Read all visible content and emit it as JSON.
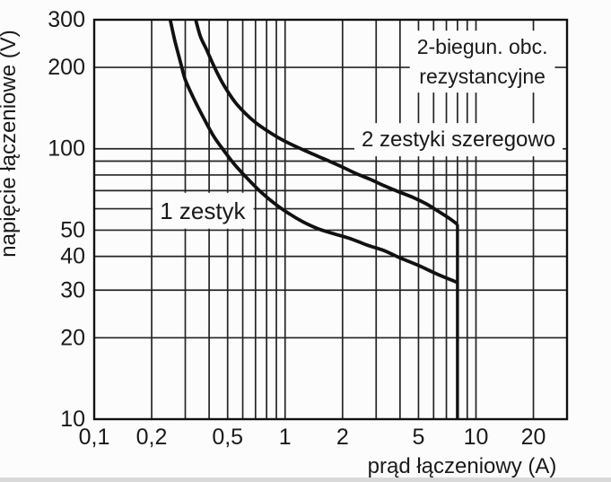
{
  "chart_data": {
    "type": "line",
    "title": "",
    "x_axis": {
      "label": "prąd łączeniowy (A)",
      "scale": "log",
      "min": 0.1,
      "max": 30,
      "ticks": [
        0.1,
        0.2,
        0.5,
        1,
        2,
        5,
        10,
        20
      ],
      "tick_labels": [
        "0,1",
        "0,2",
        "0,5",
        "1",
        "2",
        "5",
        "10",
        "20"
      ]
    },
    "y_axis": {
      "label": "napięcie łączeniowe (V)",
      "scale": "log",
      "min": 10,
      "max": 300,
      "ticks": [
        10,
        20,
        30,
        40,
        50,
        100,
        200,
        300
      ],
      "tick_labels": [
        "10",
        "20",
        "30",
        "40",
        "50",
        "100",
        "200",
        "300"
      ]
    },
    "grid": "log minor and major lines, on",
    "legend_position": "none",
    "series": [
      {
        "name": "1 zestyk",
        "points": [
          [
            0.25,
            300
          ],
          [
            0.265,
            250
          ],
          [
            0.285,
            205
          ],
          [
            0.3,
            180
          ],
          [
            0.33,
            155
          ],
          [
            0.37,
            132
          ],
          [
            0.42,
            112
          ],
          [
            0.47,
            100
          ],
          [
            0.54,
            88
          ],
          [
            0.63,
            78
          ],
          [
            0.75,
            69
          ],
          [
            0.9,
            62
          ],
          [
            1.05,
            57.5
          ],
          [
            1.25,
            53.5
          ],
          [
            1.5,
            50.5
          ],
          [
            1.8,
            48.5
          ],
          [
            2.2,
            46.5
          ],
          [
            2.7,
            44
          ],
          [
            3.3,
            42
          ],
          [
            4.0,
            39.5
          ],
          [
            5.0,
            37
          ],
          [
            6.2,
            34.5
          ],
          [
            7.2,
            33
          ],
          [
            8.0,
            32
          ]
        ]
      },
      {
        "name": "2 zestyki szeregowo",
        "points": [
          [
            0.34,
            300
          ],
          [
            0.36,
            260
          ],
          [
            0.385,
            235
          ],
          [
            0.42,
            205
          ],
          [
            0.46,
            180
          ],
          [
            0.5,
            163
          ],
          [
            0.55,
            148
          ],
          [
            0.62,
            135
          ],
          [
            0.7,
            125
          ],
          [
            0.8,
            117
          ],
          [
            0.92,
            110
          ],
          [
            1.07,
            104
          ],
          [
            1.25,
            99
          ],
          [
            1.45,
            94.5
          ],
          [
            1.7,
            90
          ],
          [
            2.0,
            85.5
          ],
          [
            2.35,
            81
          ],
          [
            2.8,
            77
          ],
          [
            3.3,
            73
          ],
          [
            3.9,
            69.5
          ],
          [
            4.7,
            66
          ],
          [
            5.5,
            62.5
          ],
          [
            6.4,
            58.5
          ],
          [
            7.2,
            55.5
          ],
          [
            8.0,
            52.5
          ]
        ]
      },
      {
        "type": "vline",
        "x": 8,
        "y_from": 52.5,
        "y_to": 10
      }
    ],
    "curve_labels": [
      {
        "text": "1 zestyk",
        "x": 0.37,
        "y": 59
      },
      {
        "text": "2 zestyki szeregowo",
        "x": 8.1,
        "y": 108
      }
    ],
    "annotation": {
      "lines": [
        "2-biegun. obc.",
        "rezystancyjne"
      ],
      "x": 10.8,
      "y": 210
    },
    "colors": {
      "ink": "#1a1a1a",
      "background": "#fcfcfc"
    }
  }
}
